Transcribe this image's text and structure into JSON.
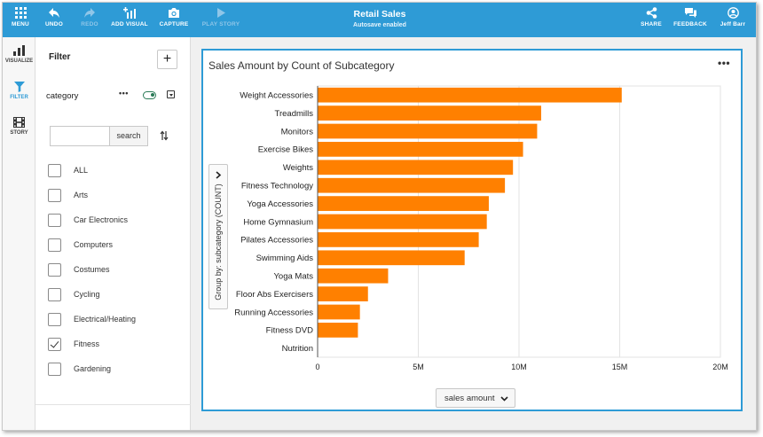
{
  "app": {
    "title": "Retail Sales",
    "subtitle": "Autosave enabled"
  },
  "toolbar": {
    "menu": "MENU",
    "undo": "UNDO",
    "redo": "REDO",
    "add_visual": "ADD VISUAL",
    "capture": "CAPTURE",
    "play_story": "PLAY STORY",
    "share": "SHARE",
    "feedback": "FEEDBACK",
    "user": "Jeff Barr"
  },
  "leftnav": {
    "visualize": "VISUALIZE",
    "filter": "FILTER",
    "story": "STORY"
  },
  "filter": {
    "title": "Filter",
    "add": "+",
    "field": "category",
    "more": "•••",
    "search_placeholder": "",
    "search_button": "search",
    "items": [
      {
        "label": "ALL",
        "checked": false
      },
      {
        "label": "Arts",
        "checked": false
      },
      {
        "label": "Car Electronics",
        "checked": false
      },
      {
        "label": "Computers",
        "checked": false
      },
      {
        "label": "Costumes",
        "checked": false
      },
      {
        "label": "Cycling",
        "checked": false
      },
      {
        "label": "Electrical/Heating",
        "checked": false
      },
      {
        "label": "Fitness",
        "checked": true
      },
      {
        "label": "Gardening",
        "checked": false
      }
    ]
  },
  "visual": {
    "title": "Sales Amount by Count of Subcategory",
    "menu": "•••",
    "group_by": "Group by: subcategory (COUNT)",
    "x_field": "sales amount"
  },
  "colors": {
    "accent": "#2e9bd6",
    "bar": "#ff8000",
    "toggle": "#2a7a56"
  },
  "chart_data": {
    "type": "bar",
    "orientation": "horizontal",
    "title": "Sales Amount by Count of Subcategory",
    "xlabel": "sales amount",
    "ylabel": "Group by: subcategory (COUNT)",
    "xlim": [
      0,
      20000000
    ],
    "x_ticks": [
      "0",
      "5M",
      "10M",
      "15M",
      "20M"
    ],
    "x_tick_values": [
      0,
      5000000,
      10000000,
      15000000,
      20000000
    ],
    "grid": true,
    "categories": [
      "Weight Accessories",
      "Treadmills",
      "Monitors",
      "Exercise Bikes",
      "Weights",
      "Fitness Technology",
      "Yoga Accessories",
      "Home Gymnasium",
      "Pilates Accessories",
      "Swimming Aids",
      "Yoga Mats",
      "Floor Abs Exercisers",
      "Running Accessories",
      "Fitness DVD",
      "Nutrition"
    ],
    "values": [
      15100000,
      11100000,
      10900000,
      10200000,
      9700000,
      9300000,
      8500000,
      8400000,
      8000000,
      7300000,
      3500000,
      2500000,
      2100000,
      2000000,
      0
    ]
  }
}
